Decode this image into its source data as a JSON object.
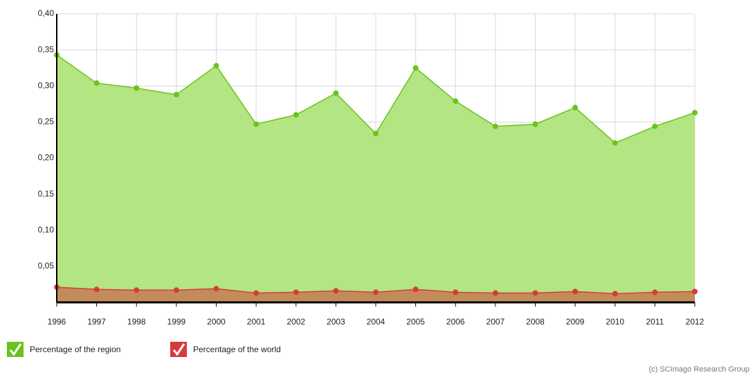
{
  "chart_data": {
    "type": "area",
    "x": [
      1996,
      1997,
      1998,
      1999,
      2000,
      2001,
      2002,
      2003,
      2004,
      2005,
      2006,
      2007,
      2008,
      2009,
      2010,
      2011,
      2012
    ],
    "xlim": [
      1996,
      2012
    ],
    "xticks": [
      1996,
      1997,
      1998,
      1999,
      2000,
      2001,
      2002,
      2003,
      2004,
      2005,
      2006,
      2007,
      2008,
      2009,
      2010,
      2011,
      2012
    ],
    "ylim": [
      0,
      0.4
    ],
    "yticks": [
      {
        "value": 0.05,
        "label": "0,05"
      },
      {
        "value": 0.1,
        "label": "0,10"
      },
      {
        "value": 0.15,
        "label": "0,15"
      },
      {
        "value": 0.2,
        "label": "0,20"
      },
      {
        "value": 0.25,
        "label": "0,25"
      },
      {
        "value": 0.3,
        "label": "0,30"
      },
      {
        "value": 0.35,
        "label": "0,35"
      },
      {
        "value": 0.4,
        "label": "0,40"
      }
    ],
    "grid": true,
    "series": [
      {
        "name": "Percentage of the region",
        "color": "#6cc21d",
        "fill": "#b3e583",
        "values": [
          0.343,
          0.304,
          0.297,
          0.288,
          0.328,
          0.247,
          0.26,
          0.29,
          0.234,
          0.325,
          0.279,
          0.244,
          0.247,
          0.27,
          0.221,
          0.244,
          0.263
        ]
      },
      {
        "name": "Percentage of the world",
        "color": "#d63a3a",
        "fill": "#c48b5a",
        "values": [
          0.021,
          0.018,
          0.017,
          0.017,
          0.019,
          0.013,
          0.014,
          0.016,
          0.014,
          0.018,
          0.014,
          0.013,
          0.013,
          0.015,
          0.012,
          0.014,
          0.015
        ]
      }
    ],
    "credit": "(c) SCImago Research Group"
  }
}
